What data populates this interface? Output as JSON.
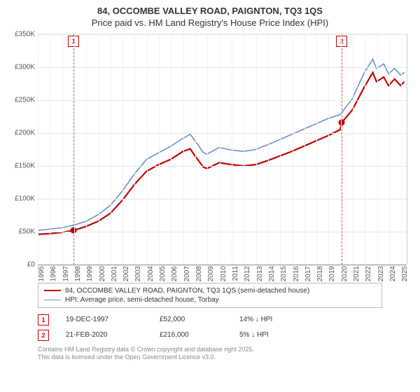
{
  "title_line1": "84, OCCOMBE VALLEY ROAD, PAIGNTON, TQ3 1QS",
  "title_line2": "Price paid vs. HM Land Registry's House Price Index (HPI)",
  "chart": {
    "type": "line",
    "background_color": "#ffffff",
    "grid_color": "#e5e5e5",
    "axis_color": "#cccccc",
    "label_color": "#555555",
    "label_fontsize": 10,
    "y": {
      "min": 0,
      "max": 350000,
      "step": 50000,
      "ticklabels": [
        "£0",
        "£50K",
        "£100K",
        "£150K",
        "£200K",
        "£250K",
        "£300K",
        "£350K"
      ]
    },
    "x": {
      "min": 1995,
      "max": 2025.5,
      "ticks": [
        1995,
        1996,
        1997,
        1998,
        1999,
        2000,
        2001,
        2002,
        2003,
        2004,
        2005,
        2006,
        2007,
        2008,
        2009,
        2010,
        2011,
        2012,
        2013,
        2014,
        2015,
        2016,
        2017,
        2018,
        2019,
        2020,
        2021,
        2022,
        2023,
        2024,
        2025
      ]
    },
    "series": [
      {
        "id": "price_paid",
        "label": "84, OCCOMBE VALLEY ROAD, PAIGNTON, TQ3 1QS (semi-detached house)",
        "color": "#c00000",
        "width": 2.2,
        "points": [
          [
            1995,
            46000
          ],
          [
            1996,
            47000
          ],
          [
            1997,
            49000
          ],
          [
            1997.97,
            52000
          ],
          [
            1999,
            58000
          ],
          [
            2000,
            66000
          ],
          [
            2001,
            78000
          ],
          [
            2002,
            98000
          ],
          [
            2003,
            122000
          ],
          [
            2004,
            142000
          ],
          [
            2005,
            152000
          ],
          [
            2006,
            160000
          ],
          [
            2007,
            172000
          ],
          [
            2007.6,
            176000
          ],
          [
            2008,
            165000
          ],
          [
            2008.7,
            148000
          ],
          [
            2009,
            146000
          ],
          [
            2010,
            155000
          ],
          [
            2011,
            152000
          ],
          [
            2012,
            150000
          ],
          [
            2013,
            152000
          ],
          [
            2014,
            158000
          ],
          [
            2015,
            165000
          ],
          [
            2016,
            172000
          ],
          [
            2017,
            180000
          ],
          [
            2018,
            188000
          ],
          [
            2019,
            196000
          ],
          [
            2020,
            205000
          ],
          [
            2020.14,
            216000
          ],
          [
            2021,
            235000
          ],
          [
            2022,
            270000
          ],
          [
            2022.7,
            292000
          ],
          [
            2023,
            278000
          ],
          [
            2023.6,
            285000
          ],
          [
            2024,
            272000
          ],
          [
            2024.5,
            282000
          ],
          [
            2025,
            272000
          ],
          [
            2025.3,
            278000
          ]
        ]
      },
      {
        "id": "hpi",
        "label": "HPI: Average price, semi-detached house, Torbay",
        "color": "#6a8fc4",
        "width": 1.6,
        "points": [
          [
            1995,
            52000
          ],
          [
            1996,
            54000
          ],
          [
            1997,
            56000
          ],
          [
            1998,
            60000
          ],
          [
            1999,
            66000
          ],
          [
            2000,
            76000
          ],
          [
            2001,
            90000
          ],
          [
            2002,
            112000
          ],
          [
            2003,
            138000
          ],
          [
            2004,
            160000
          ],
          [
            2005,
            170000
          ],
          [
            2006,
            180000
          ],
          [
            2007,
            192000
          ],
          [
            2007.6,
            198000
          ],
          [
            2008,
            188000
          ],
          [
            2008.7,
            170000
          ],
          [
            2009,
            168000
          ],
          [
            2010,
            178000
          ],
          [
            2011,
            174000
          ],
          [
            2012,
            172000
          ],
          [
            2013,
            175000
          ],
          [
            2014,
            182000
          ],
          [
            2015,
            190000
          ],
          [
            2016,
            198000
          ],
          [
            2017,
            206000
          ],
          [
            2018,
            214000
          ],
          [
            2019,
            222000
          ],
          [
            2020,
            228000
          ],
          [
            2021,
            252000
          ],
          [
            2022,
            292000
          ],
          [
            2022.7,
            312000
          ],
          [
            2023,
            298000
          ],
          [
            2023.6,
            305000
          ],
          [
            2024,
            290000
          ],
          [
            2024.5,
            298000
          ],
          [
            2025,
            288000
          ],
          [
            2025.3,
            292000
          ]
        ]
      }
    ],
    "sale_markers": [
      {
        "n": "1",
        "x": 1997.97,
        "y": 52000,
        "color": "#c00000"
      },
      {
        "n": "2",
        "x": 2020.14,
        "y": 216000,
        "color": "#c00000"
      }
    ]
  },
  "legend_items": [
    {
      "color": "#c00000",
      "width": 2.2,
      "label": "84, OCCOMBE VALLEY ROAD, PAIGNTON, TQ3 1QS (semi-detached house)"
    },
    {
      "color": "#6a8fc4",
      "width": 1.6,
      "label": "HPI: Average price, semi-detached house, Torbay"
    }
  ],
  "sales_rows": [
    {
      "n": "1",
      "date": "19-DEC-1997",
      "price": "£52,000",
      "delta": "14% ↓ HPI"
    },
    {
      "n": "2",
      "date": "21-FEB-2020",
      "price": "£216,000",
      "delta": "5% ↓ HPI"
    }
  ],
  "footer_line1": "Contains HM Land Registry data © Crown copyright and database right 2025.",
  "footer_line2": "This data is licensed under the Open Government Licence v3.0."
}
